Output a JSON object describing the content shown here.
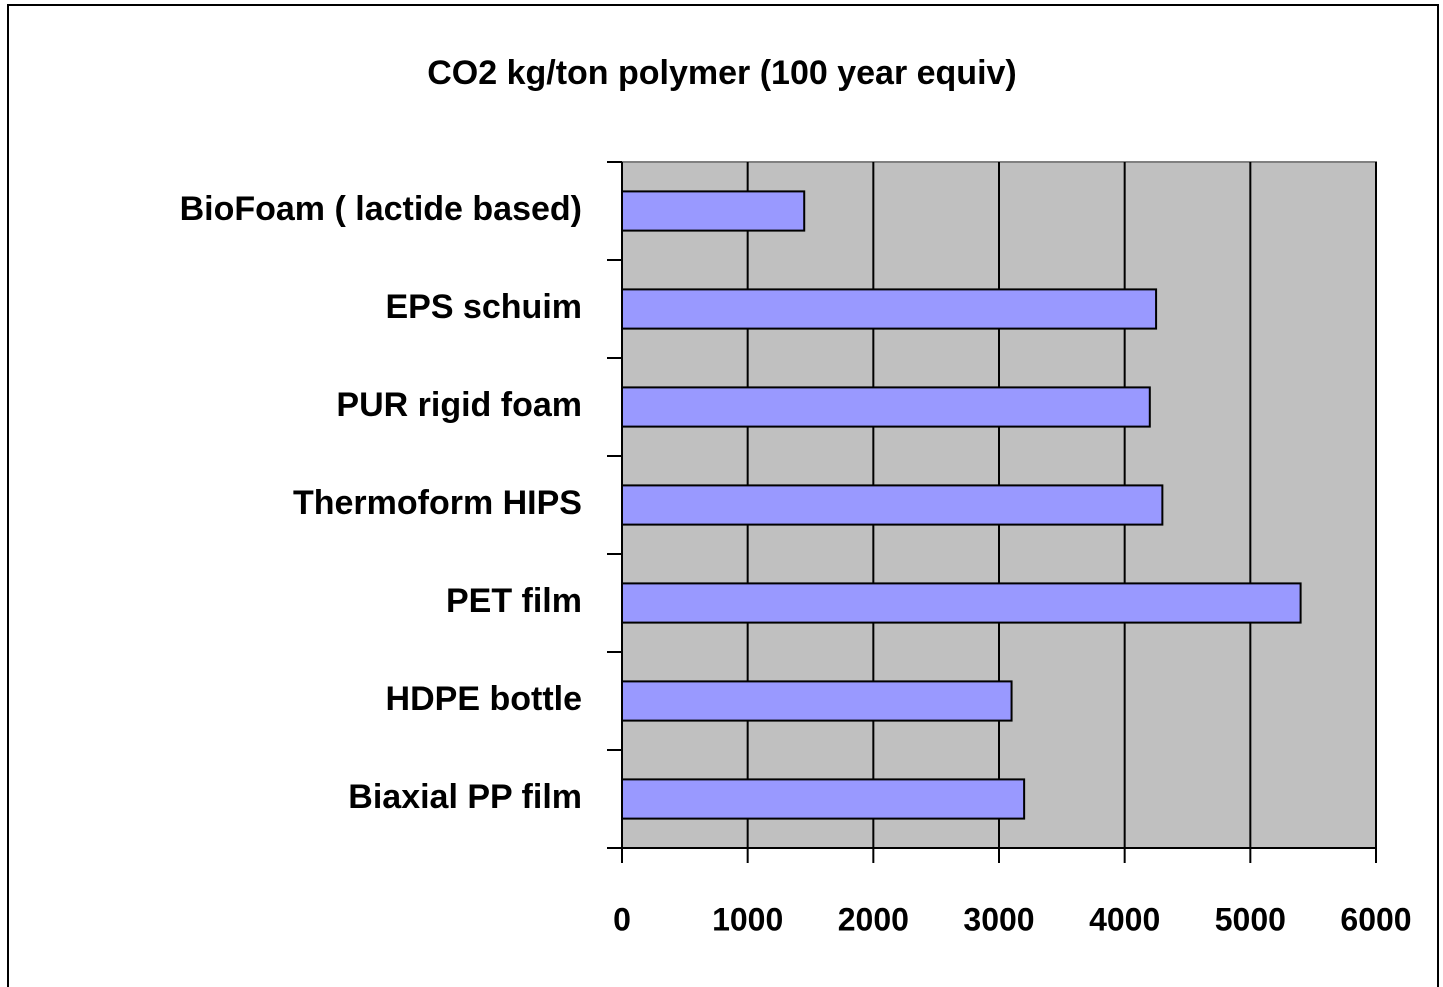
{
  "chart_data": {
    "type": "bar",
    "orientation": "horizontal",
    "title": "CO2 kg/ton polymer (100 year equiv)",
    "categories": [
      "BioFoam ( lactide based)",
      "EPS schuim",
      "PUR rigid foam",
      "Thermoform HIPS",
      "PET film",
      "HDPE bottle",
      "Biaxial PP film"
    ],
    "values": [
      1450,
      4250,
      4200,
      4300,
      5400,
      3100,
      3200
    ],
    "color": "#9999ff",
    "xlim": [
      0,
      6000
    ],
    "xticks": [
      0,
      1000,
      2000,
      3000,
      4000,
      5000,
      6000
    ],
    "grid": true
  }
}
